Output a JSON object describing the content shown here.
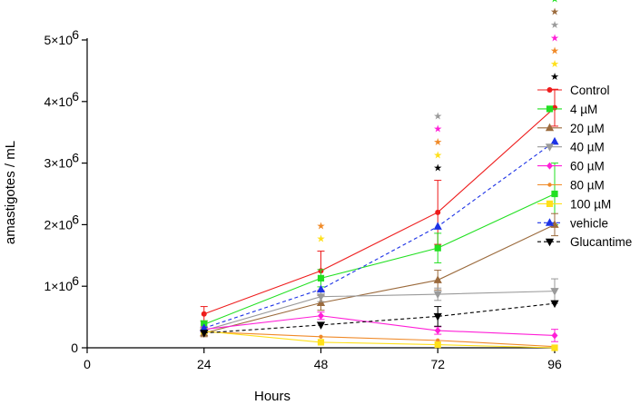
{
  "chart_data": {
    "type": "line",
    "title": "",
    "xlabel": "Hours",
    "ylabel": "amastigotes / mL",
    "xlim": [
      0,
      96
    ],
    "ylim": [
      0,
      5000000
    ],
    "x": [
      24,
      48,
      72,
      96
    ],
    "x_ticks": [
      {
        "value": 0,
        "label": "0"
      },
      {
        "value": 24,
        "label": "24"
      },
      {
        "value": 48,
        "label": "48"
      },
      {
        "value": 72,
        "label": "72"
      },
      {
        "value": 96,
        "label": "96"
      }
    ],
    "y_ticks": [
      {
        "value": 0,
        "label": "0"
      },
      {
        "value": 1000000,
        "label": "1×10",
        "exp": "6"
      },
      {
        "value": 2000000,
        "label": "2×10",
        "exp": "6"
      },
      {
        "value": 3000000,
        "label": "3×10",
        "exp": "6"
      },
      {
        "value": 4000000,
        "label": "4×10",
        "exp": "6"
      },
      {
        "value": 5000000,
        "label": "5×10",
        "exp": "6"
      }
    ],
    "legend_position": "right",
    "series": [
      {
        "name": "Control",
        "color": "#ee1c1c",
        "marker": "circle",
        "dashed": false,
        "values": [
          550000,
          1250000,
          2200000,
          3900000
        ],
        "errors": [
          120000,
          320000,
          520000,
          300000
        ]
      },
      {
        "name": "4 µM",
        "color": "#22e022",
        "marker": "square",
        "dashed": false,
        "values": [
          380000,
          1130000,
          1620000,
          2500000
        ],
        "errors": [
          60000,
          140000,
          240000,
          500000
        ]
      },
      {
        "name": "20 µM",
        "color": "#9b6a3c",
        "marker": "triangle-up",
        "dashed": false,
        "values": [
          240000,
          730000,
          1100000,
          2000000
        ],
        "errors": [
          60000,
          120000,
          160000,
          180000
        ]
      },
      {
        "name": "40 µM",
        "color": "#9a9a9a",
        "marker": "triangle-down",
        "dashed": false,
        "values": [
          280000,
          830000,
          870000,
          920000
        ],
        "errors": [
          40000,
          80000,
          100000,
          200000
        ]
      },
      {
        "name": "60 µM",
        "color": "#ff1fd7",
        "marker": "diamond",
        "dashed": false,
        "values": [
          300000,
          520000,
          280000,
          200000
        ],
        "errors": [
          40000,
          60000,
          60000,
          100000
        ]
      },
      {
        "name": "80 µM",
        "color": "#f08a28",
        "marker": "circle-small",
        "dashed": false,
        "values": [
          260000,
          180000,
          120000,
          20000
        ],
        "errors": [
          0,
          0,
          0,
          0
        ]
      },
      {
        "name": "100 µM",
        "color": "#ffe01a",
        "marker": "square",
        "dashed": false,
        "values": [
          270000,
          90000,
          50000,
          0
        ],
        "errors": [
          0,
          0,
          0,
          0
        ]
      },
      {
        "name": "vehicle",
        "color": "#1c32e6",
        "marker": "triangle-up",
        "dashed": true,
        "values": [
          320000,
          950000,
          1970000,
          3350000
        ],
        "errors": [
          0,
          0,
          0,
          0
        ]
      },
      {
        "name": "Glucantime",
        "color": "#000000",
        "marker": "triangle-down",
        "dashed": true,
        "values": [
          240000,
          370000,
          510000,
          720000
        ],
        "errors": [
          0,
          0,
          160000,
          0
        ]
      }
    ],
    "significance_stars": [
      {
        "x": 48,
        "colors": [
          "#f08a28",
          "#ffe01a"
        ]
      },
      {
        "x": 72,
        "colors": [
          "#9a9a9a",
          "#ff1fd7",
          "#f08a28",
          "#ffe01a",
          "#000000"
        ]
      },
      {
        "x": 96,
        "colors": [
          "#22e022",
          "#9b6a3c",
          "#9a9a9a",
          "#ff1fd7",
          "#f08a28",
          "#ffe01a",
          "#000000"
        ]
      }
    ],
    "star_symbol": "★"
  }
}
